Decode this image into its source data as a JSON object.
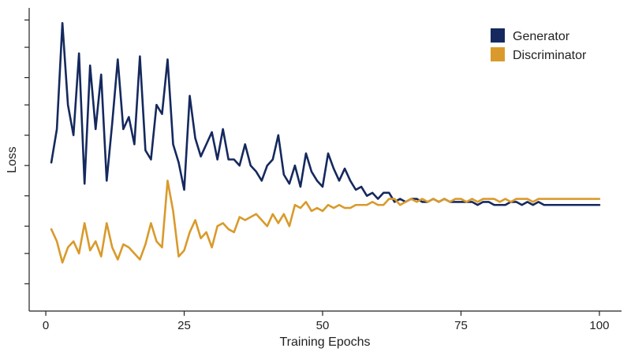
{
  "chart_data": {
    "type": "line",
    "title": "",
    "xlabel": "Training Epochs",
    "ylabel": "Loss",
    "xlim": [
      -3,
      104
    ],
    "ylim": [
      0,
      100
    ],
    "xticks": [
      0,
      25,
      50,
      75,
      100
    ],
    "xtick_labels": [
      "0",
      "25",
      "50",
      "75",
      "100"
    ],
    "yticks": [
      9,
      19,
      28,
      38,
      48,
      58,
      68,
      77,
      87,
      96
    ],
    "ytick_labels": [
      "",
      "",
      "",
      "",
      "",
      "",
      "",
      "",
      "",
      ""
    ],
    "grid": false,
    "legend_position": "top-right",
    "series": [
      {
        "name": "Generator",
        "color": "#15295e",
        "x": [
          1,
          2,
          3,
          4,
          5,
          6,
          7,
          8,
          9,
          10,
          11,
          12,
          13,
          14,
          15,
          16,
          17,
          18,
          19,
          20,
          21,
          22,
          23,
          24,
          25,
          26,
          27,
          28,
          29,
          30,
          31,
          32,
          33,
          34,
          35,
          36,
          37,
          38,
          39,
          40,
          41,
          42,
          43,
          44,
          45,
          46,
          47,
          48,
          49,
          50,
          51,
          52,
          53,
          54,
          55,
          56,
          57,
          58,
          59,
          60,
          61,
          62,
          63,
          64,
          65,
          66,
          67,
          68,
          69,
          70,
          71,
          72,
          73,
          74,
          75,
          76,
          77,
          78,
          79,
          80,
          81,
          82,
          83,
          84,
          85,
          86,
          87,
          88,
          89,
          90,
          91,
          92,
          93,
          94,
          95,
          96,
          97,
          98,
          99,
          100
        ],
        "values": [
          49,
          60,
          95,
          68,
          58,
          85,
          42,
          81,
          60,
          78,
          43,
          62,
          83,
          60,
          64,
          55,
          84,
          53,
          50,
          68,
          65,
          83,
          55,
          49,
          40,
          71,
          57,
          51,
          55,
          59,
          50,
          60,
          50,
          50,
          48,
          55,
          48,
          46,
          43,
          48,
          50,
          58,
          45,
          42,
          48,
          41,
          52,
          46,
          43,
          41,
          52,
          47,
          43,
          47,
          43,
          40,
          41,
          38,
          39,
          37,
          39,
          39,
          36,
          37,
          36,
          37,
          37,
          36,
          36,
          37,
          36,
          37,
          36,
          36,
          36,
          36,
          36,
          35,
          36,
          36,
          35,
          35,
          35,
          36,
          36,
          35,
          36,
          35,
          36,
          35,
          35,
          35,
          35,
          35,
          35,
          35,
          35,
          35,
          35,
          35
        ]
      },
      {
        "name": "Discriminator",
        "color": "#d99a2b",
        "x": [
          1,
          2,
          3,
          4,
          5,
          6,
          7,
          8,
          9,
          10,
          11,
          12,
          13,
          14,
          15,
          16,
          17,
          18,
          19,
          20,
          21,
          22,
          23,
          24,
          25,
          26,
          27,
          28,
          29,
          30,
          31,
          32,
          33,
          34,
          35,
          36,
          37,
          38,
          39,
          40,
          41,
          42,
          43,
          44,
          45,
          46,
          47,
          48,
          49,
          50,
          51,
          52,
          53,
          54,
          55,
          56,
          57,
          58,
          59,
          60,
          61,
          62,
          63,
          64,
          65,
          66,
          67,
          68,
          69,
          70,
          71,
          72,
          73,
          74,
          75,
          76,
          77,
          78,
          79,
          80,
          81,
          82,
          83,
          84,
          85,
          86,
          87,
          88,
          89,
          90,
          91,
          92,
          93,
          94,
          95,
          96,
          97,
          98,
          99,
          100
        ],
        "values": [
          27,
          23,
          16,
          21,
          23,
          19,
          29,
          20,
          23,
          18,
          29,
          21,
          17,
          22,
          21,
          19,
          17,
          22,
          29,
          23,
          21,
          43,
          33,
          18,
          20,
          26,
          30,
          24,
          26,
          21,
          28,
          29,
          27,
          26,
          31,
          30,
          31,
          32,
          30,
          28,
          32,
          29,
          32,
          28,
          35,
          34,
          36,
          33,
          34,
          33,
          35,
          34,
          35,
          34,
          34,
          35,
          35,
          35,
          36,
          35,
          35,
          37,
          37,
          35,
          36,
          37,
          36,
          37,
          36,
          37,
          36,
          37,
          36,
          37,
          37,
          36,
          37,
          36,
          37,
          37,
          37,
          36,
          37,
          36,
          37,
          37,
          37,
          36,
          37,
          37,
          37,
          37,
          37,
          37,
          37,
          37,
          37,
          37,
          37,
          37
        ]
      }
    ]
  }
}
